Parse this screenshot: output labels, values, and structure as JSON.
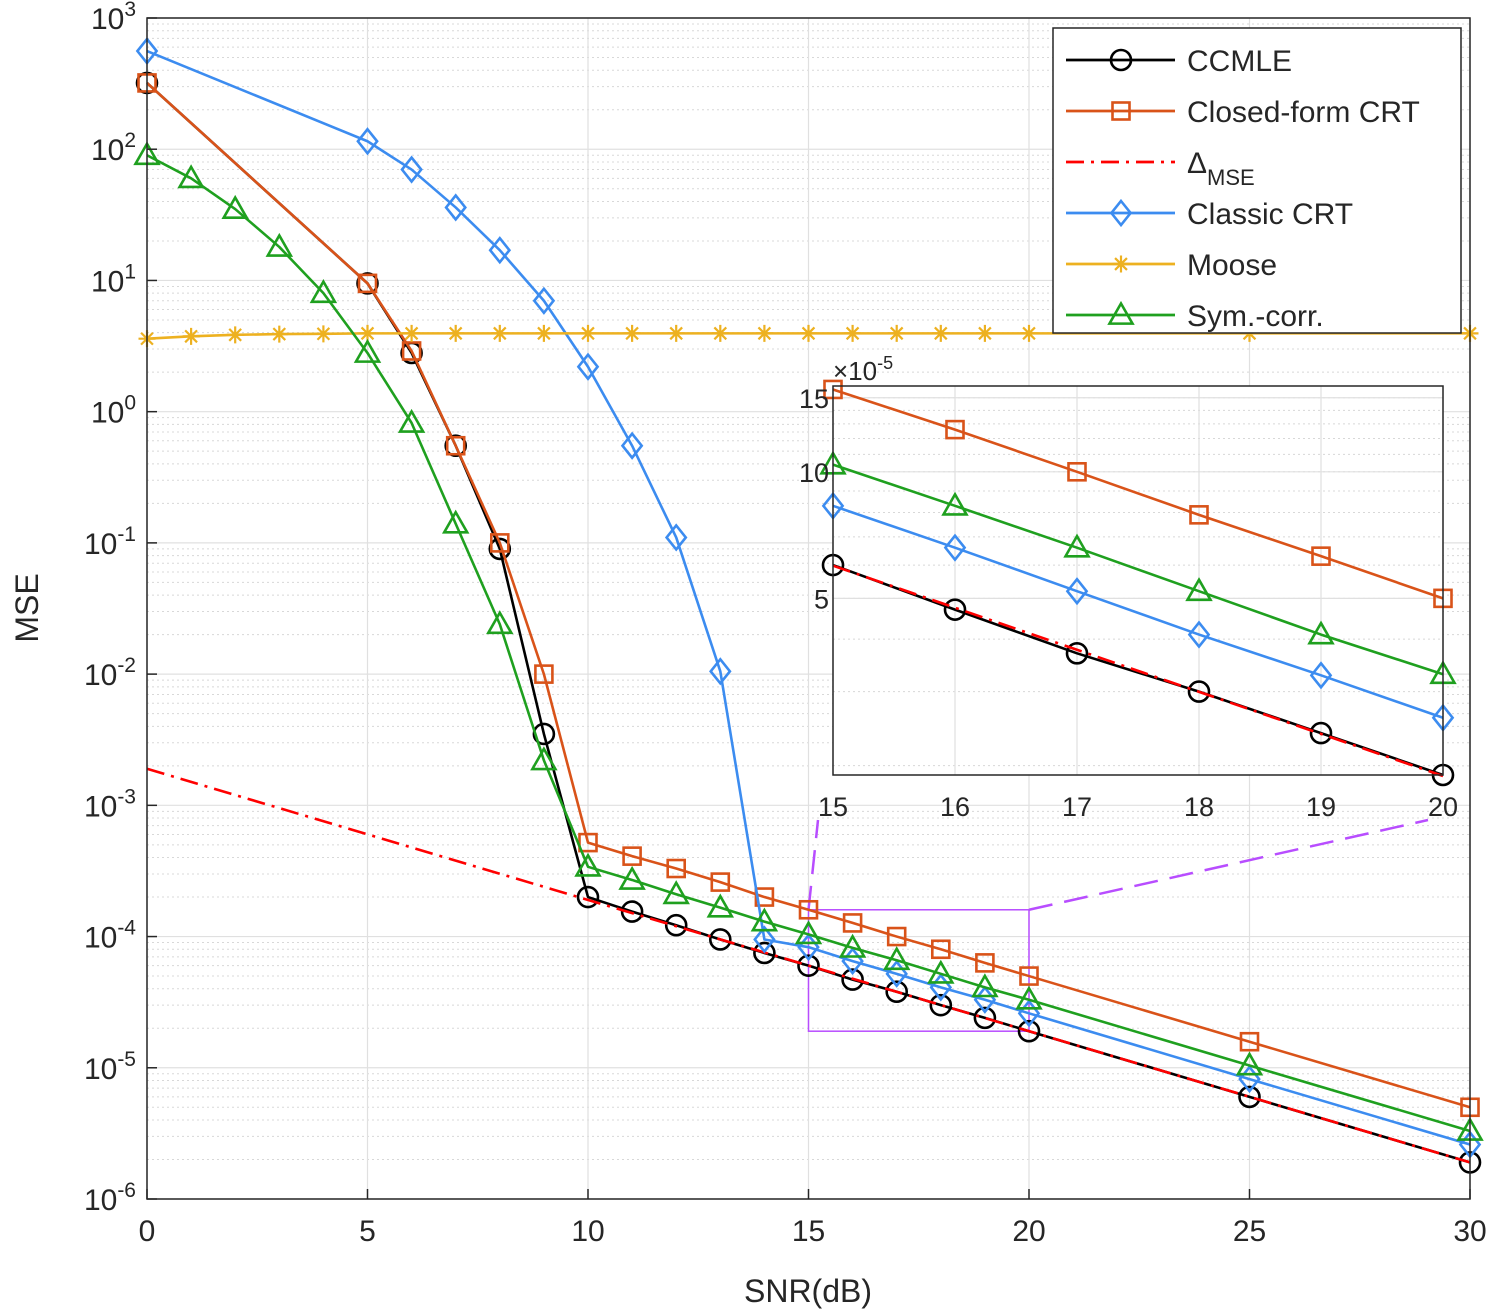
{
  "colors": {
    "CCMLE": "#000000",
    "Closed-form CRT": "#d95319",
    "Delta_MSE": "#ff0000",
    "Classic CRT": "#3c8cf0",
    "Moose": "#edb120",
    "Sym.-corr.": "#1fa01f",
    "zoom_box": "#b84dff",
    "grid": "#e0e0e0",
    "axes": "#262626"
  },
  "chart_data": [
    {
      "type": "line",
      "xlabel": "SNR(dB)",
      "ylabel": "MSE",
      "yscale": "log",
      "xlim": [
        0,
        30
      ],
      "ylim": [
        1e-06,
        1000
      ],
      "xticks": [
        0,
        5,
        10,
        15,
        20,
        25,
        30
      ],
      "xtick_labels": [
        "0",
        "5",
        "10",
        "15",
        "20",
        "25",
        "30"
      ],
      "yticks": [
        {
          "value": 1e-06,
          "base": "10",
          "exp": "-6"
        },
        {
          "value": 1e-05,
          "base": "10",
          "exp": "-5"
        },
        {
          "value": 0.0001,
          "base": "10",
          "exp": "-4"
        },
        {
          "value": 0.001,
          "base": "10",
          "exp": "-3"
        },
        {
          "value": 0.01,
          "base": "10",
          "exp": "-2"
        },
        {
          "value": 0.1,
          "base": "10",
          "exp": "-1"
        },
        {
          "value": 1,
          "base": "10",
          "exp": "0"
        },
        {
          "value": 10,
          "base": "10",
          "exp": "1"
        },
        {
          "value": 100,
          "base": "10",
          "exp": "2"
        },
        {
          "value": 1000,
          "base": "10",
          "exp": "3"
        }
      ],
      "grid": true,
      "legend_position": "top-right",
      "legend": [
        {
          "label": "CCMLE",
          "series": "CCMLE"
        },
        {
          "label": "Closed-form CRT",
          "series": "Closed-form CRT"
        },
        {
          "label": "Δ",
          "sub": "MSE",
          "series": "Delta_MSE"
        },
        {
          "label": "Classic CRT",
          "series": "Classic CRT"
        },
        {
          "label": "Moose",
          "series": "Moose"
        },
        {
          "label": "Sym.-corr.",
          "series": "Sym.-corr."
        }
      ],
      "series": [
        {
          "name": "CCMLE",
          "marker": "circle",
          "line": "solid",
          "x": [
            0,
            5,
            6,
            7,
            8,
            9,
            10,
            11,
            12,
            13,
            14,
            15,
            16,
            17,
            18,
            19,
            20,
            25,
            30
          ],
          "y": [
            320,
            9.5,
            2.8,
            0.55,
            0.09,
            0.0035,
            0.0002,
            0.000155,
            0.000122,
            9.5e-05,
            7.5e-05,
            6e-05,
            4.7e-05,
            3.8e-05,
            3e-05,
            2.4e-05,
            1.9e-05,
            6e-06,
            1.9e-06
          ]
        },
        {
          "name": "Closed-form CRT",
          "marker": "square",
          "line": "solid",
          "x": [
            0,
            5,
            6,
            7,
            8,
            9,
            10,
            11,
            12,
            13,
            14,
            15,
            16,
            17,
            18,
            19,
            20,
            25,
            30
          ],
          "y": [
            320,
            9.5,
            2.9,
            0.55,
            0.1,
            0.01,
            0.00052,
            0.00041,
            0.00033,
            0.00026,
            0.0002,
            0.00016,
            0.000127,
            0.0001,
            8e-05,
            6.3e-05,
            5e-05,
            1.58e-05,
            5e-06
          ]
        },
        {
          "name": "Delta_MSE",
          "marker": "none",
          "line": "dashdot",
          "x": [
            0,
            30
          ],
          "y": [
            0.0019,
            1.9e-06
          ]
        },
        {
          "name": "Classic CRT",
          "marker": "diamond",
          "line": "solid",
          "x": [
            0,
            5,
            6,
            7,
            8,
            9,
            10,
            11,
            12,
            13,
            14,
            15,
            16,
            17,
            18,
            19,
            20,
            25,
            30
          ],
          "y": [
            560,
            115,
            70,
            36,
            17,
            7,
            2.2,
            0.55,
            0.11,
            0.0105,
            9.5e-05,
            8.3e-05,
            6.5e-05,
            5.2e-05,
            4.1e-05,
            3.3e-05,
            2.6e-05,
            8.2e-06,
            2.6e-06
          ]
        },
        {
          "name": "Moose",
          "marker": "asterisk",
          "line": "solid",
          "x": [
            0,
            1,
            2,
            3,
            4,
            5,
            6,
            7,
            8,
            9,
            10,
            11,
            12,
            13,
            14,
            15,
            16,
            17,
            18,
            19,
            20,
            25,
            30
          ],
          "y": [
            3.6,
            3.75,
            3.85,
            3.9,
            3.92,
            3.95,
            3.95,
            3.95,
            3.95,
            3.95,
            3.95,
            3.95,
            3.95,
            3.95,
            3.95,
            3.95,
            3.95,
            3.95,
            3.95,
            3.95,
            3.95,
            3.95,
            3.95
          ]
        },
        {
          "name": "Sym.-corr.",
          "marker": "triangle",
          "line": "solid",
          "x": [
            0,
            1,
            2,
            3,
            4,
            5,
            6,
            7,
            8,
            9,
            10,
            11,
            12,
            13,
            14,
            15,
            16,
            17,
            18,
            19,
            20,
            25,
            30
          ],
          "y": [
            90,
            60,
            35,
            18,
            8,
            2.8,
            0.82,
            0.14,
            0.024,
            0.0022,
            0.00034,
            0.00027,
            0.00021,
            0.000166,
            0.00013,
            0.000104,
            8.2e-05,
            6.6e-05,
            5.2e-05,
            4.1e-05,
            3.3e-05,
            1.04e-05,
            3.3e-06
          ]
        }
      ]
    },
    {
      "type": "line",
      "inset": true,
      "yscale": "log",
      "xlim": [
        15,
        20
      ],
      "ylim": [
        1.9e-05,
        0.00016
      ],
      "xticks": [
        15,
        16,
        17,
        18,
        19,
        20
      ],
      "xtick_labels": [
        "15",
        "16",
        "17",
        "18",
        "19",
        "20"
      ],
      "yticks": [
        {
          "value": 5e-05,
          "label": "5"
        },
        {
          "value": 0.0001,
          "label": "10"
        },
        {
          "value": 0.00015,
          "label": "15"
        }
      ],
      "y_multiplier": {
        "prefix": "×10",
        "exp": "-5"
      },
      "grid": true,
      "series": [
        {
          "name": "CCMLE",
          "marker": "circle",
          "line": "solid",
          "x": [
            15,
            16,
            17,
            18,
            19,
            20
          ],
          "y": [
            6e-05,
            4.7e-05,
            3.7e-05,
            3e-05,
            2.39e-05,
            1.9e-05
          ]
        },
        {
          "name": "Closed-form CRT",
          "marker": "square",
          "line": "solid",
          "x": [
            15,
            16,
            17,
            18,
            19,
            20
          ],
          "y": [
            0.000157,
            0.000126,
            0.0001,
            7.9e-05,
            6.3e-05,
            5e-05
          ]
        },
        {
          "name": "Delta_MSE",
          "marker": "none",
          "line": "dashdot",
          "x": [
            15,
            20
          ],
          "y": [
            5.98e-05,
            1.89e-05
          ]
        },
        {
          "name": "Classic CRT",
          "marker": "diamond",
          "line": "solid",
          "x": [
            15,
            16,
            17,
            18,
            19,
            20
          ],
          "y": [
            8.3e-05,
            6.6e-05,
            5.2e-05,
            4.1e-05,
            3.28e-05,
            2.6e-05
          ]
        },
        {
          "name": "Sym.-corr.",
          "marker": "triangle",
          "line": "solid",
          "x": [
            15,
            16,
            17,
            18,
            19,
            20
          ],
          "y": [
            0.000104,
            8.3e-05,
            6.6e-05,
            5.2e-05,
            4.1e-05,
            3.3e-05
          ]
        }
      ]
    }
  ]
}
